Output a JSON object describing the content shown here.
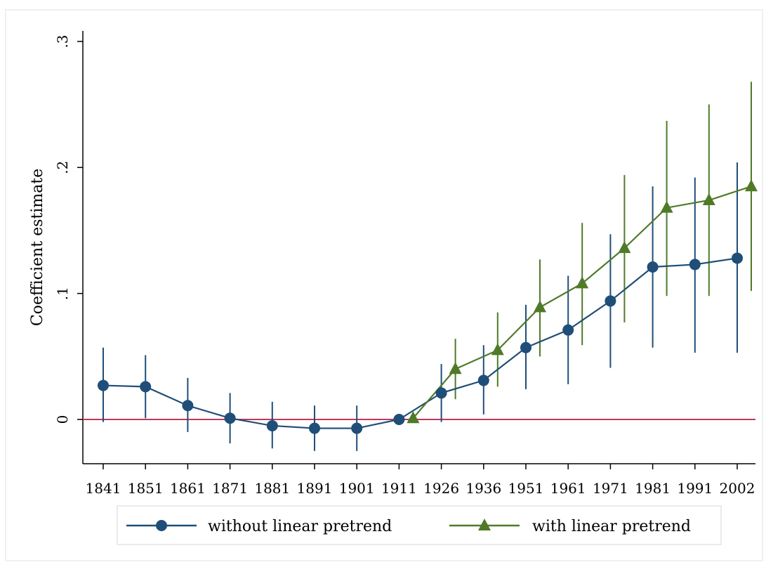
{
  "chart_data": {
    "type": "line",
    "title": "",
    "xlabel": "",
    "ylabel": "Coefficient estimate",
    "categories": [
      "1841",
      "1851",
      "1861",
      "1871",
      "1881",
      "1891",
      "1901",
      "1911",
      "1926",
      "1936",
      "1951",
      "1961",
      "1971",
      "1981",
      "1991",
      "2002"
    ],
    "y_ticks": [
      0,
      0.1,
      0.2,
      0.3
    ],
    "y_tick_labels": [
      "0",
      ".1",
      ".2",
      ".3"
    ],
    "ylim": [
      -0.035,
      0.31
    ],
    "reference_line": {
      "y": 0,
      "color": "#c0395a"
    },
    "grid": false,
    "legend_position": "bottom",
    "series": [
      {
        "name": "without linear pretrend",
        "color": "#1f4e79",
        "marker": "circle",
        "values": [
          0.027,
          0.026,
          0.011,
          0.001,
          -0.005,
          -0.007,
          -0.007,
          0.0,
          0.021,
          0.031,
          0.057,
          0.071,
          0.094,
          0.121,
          0.123,
          0.128
        ],
        "ci_low": [
          -0.002,
          0.001,
          -0.01,
          -0.019,
          -0.023,
          -0.025,
          -0.025,
          0.0,
          -0.002,
          0.004,
          0.024,
          0.028,
          0.041,
          0.057,
          0.053,
          0.053
        ],
        "ci_high": [
          0.057,
          0.051,
          0.033,
          0.021,
          0.014,
          0.011,
          0.011,
          0.0,
          0.044,
          0.059,
          0.091,
          0.114,
          0.147,
          0.185,
          0.192,
          0.204
        ]
      },
      {
        "name": "with linear pretrend",
        "color": "#4f7a28",
        "marker": "triangle",
        "values": [
          null,
          null,
          null,
          null,
          null,
          null,
          null,
          0.001,
          0.04,
          0.055,
          0.089,
          0.108,
          0.136,
          0.168,
          0.174,
          0.185
        ],
        "ci_low": [
          null,
          null,
          null,
          null,
          null,
          null,
          null,
          null,
          0.016,
          0.026,
          0.05,
          0.059,
          0.077,
          0.098,
          0.098,
          0.102
        ],
        "ci_high": [
          null,
          null,
          null,
          null,
          null,
          null,
          null,
          null,
          0.064,
          0.085,
          0.127,
          0.156,
          0.194,
          0.237,
          0.25,
          0.268
        ]
      }
    ]
  }
}
